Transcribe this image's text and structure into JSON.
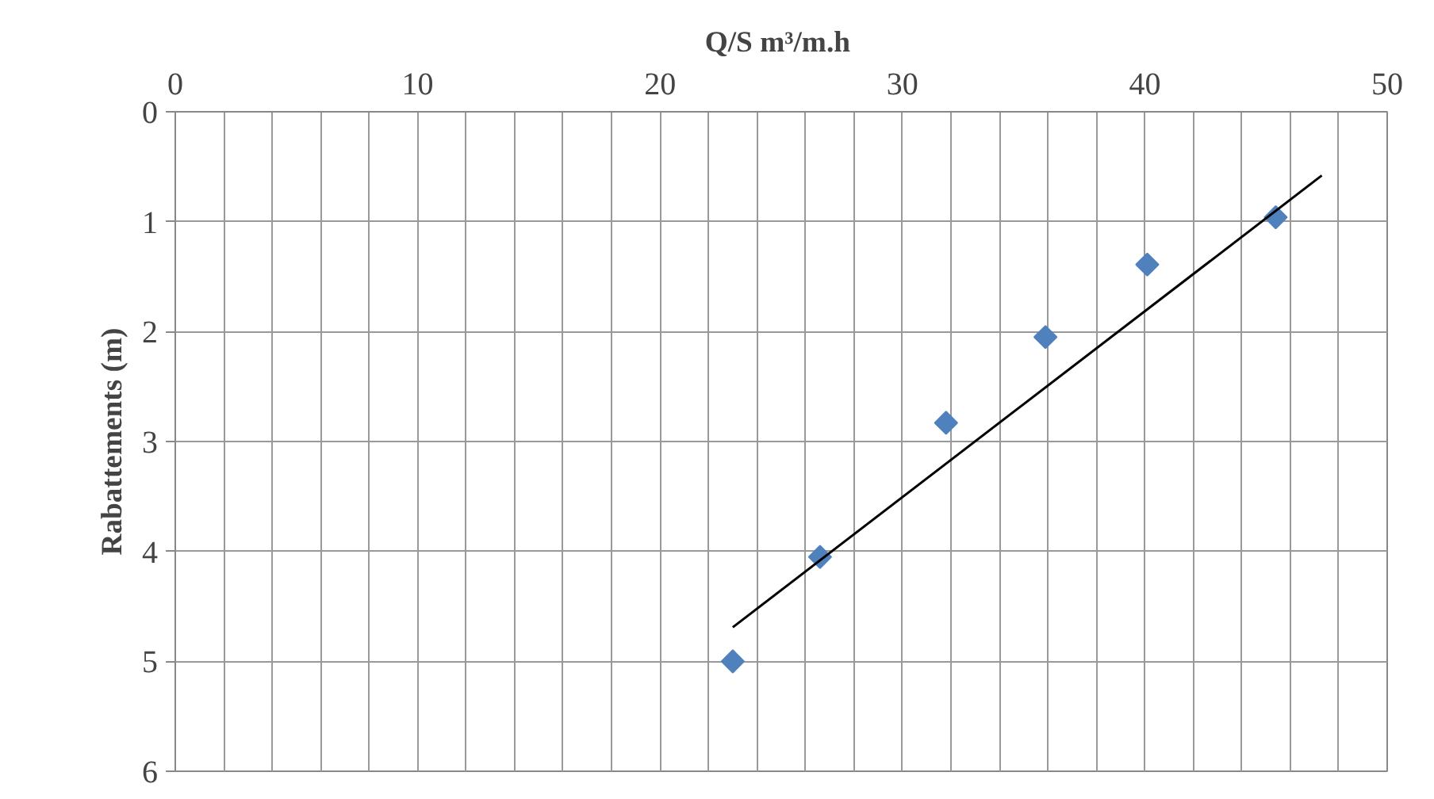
{
  "chart_data": {
    "type": "scatter",
    "xlabel": "Q/S  m³/m.h",
    "ylabel": "Rabattements (m)",
    "xlim": [
      0,
      50
    ],
    "ylim": [
      6,
      0
    ],
    "xticks": [
      0,
      {
        "value": 2,
        "label": null
      },
      {
        "value": 4,
        "label": null
      },
      {
        "value": 6,
        "label": null
      },
      {
        "value": 8,
        "label": null
      },
      10,
      {
        "value": 12,
        "label": null
      },
      {
        "value": 14,
        "label": null
      },
      {
        "value": 16,
        "label": null
      },
      {
        "value": 18,
        "label": null
      },
      20,
      {
        "value": 22,
        "label": null
      },
      {
        "value": 24,
        "label": null
      },
      {
        "value": 26,
        "label": null
      },
      {
        "value": 28,
        "label": null
      },
      30,
      {
        "value": 32,
        "label": null
      },
      {
        "value": 34,
        "label": null
      },
      {
        "value": 36,
        "label": null
      },
      {
        "value": 38,
        "label": null
      },
      40,
      {
        "value": 42,
        "label": null
      },
      {
        "value": 44,
        "label": null
      },
      {
        "value": 46,
        "label": null
      },
      {
        "value": 48,
        "label": null
      },
      50
    ],
    "yticks": [
      0,
      1,
      2,
      3,
      4,
      5,
      6
    ],
    "grid": true,
    "marker": "diamond",
    "series": [
      {
        "color": "#4f81bd",
        "x": [
          23.0,
          26.6,
          31.8,
          35.9,
          40.1,
          45.4
        ],
        "values": [
          5.0,
          4.05,
          2.83,
          2.05,
          1.39,
          0.96
        ]
      },
      {
        "type": "line",
        "color": "#000000",
        "marker": "none",
        "x": [
          23.0,
          47.3
        ],
        "values": [
          4.69,
          0.58
        ]
      }
    ]
  }
}
